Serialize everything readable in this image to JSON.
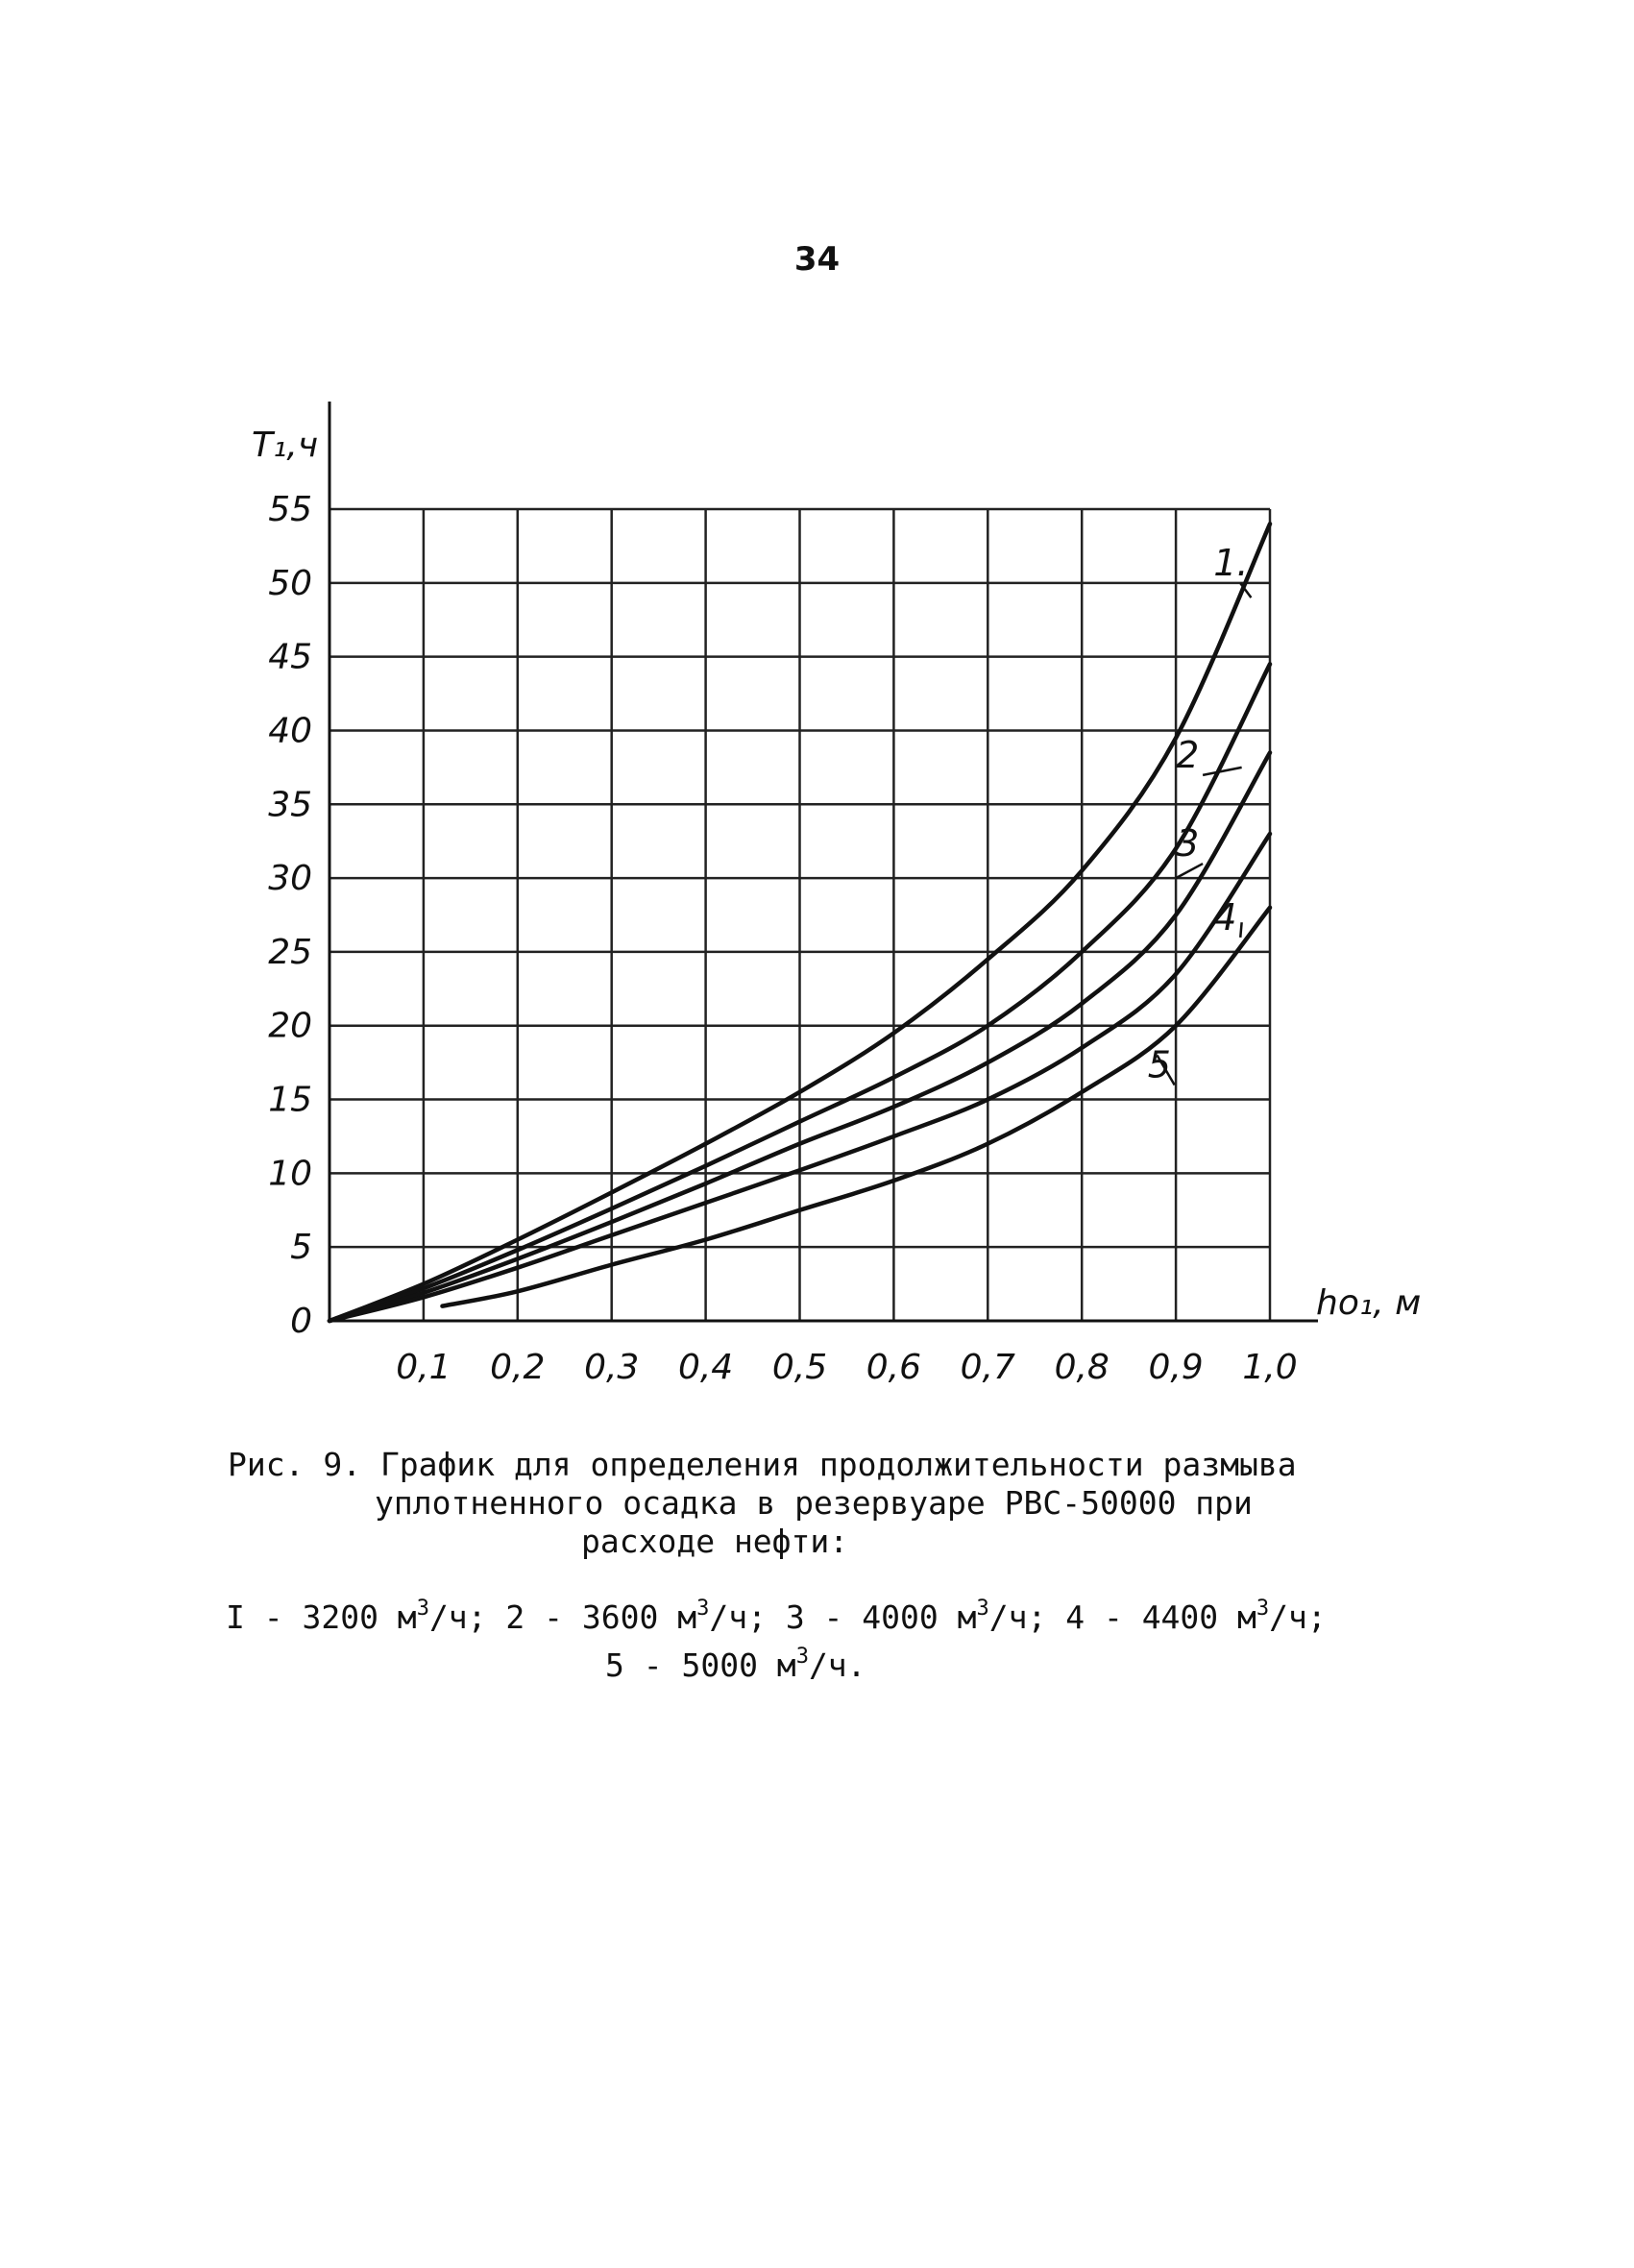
{
  "page_number": "34",
  "caption": {
    "line1": "Рис. 9. График для определения продолжительности размыва",
    "line2": "уплотненного осадка в резервуаре РВС-50000 при",
    "line3": "расходе нефти:",
    "item1": "I - 3200 м",
    "item2": "/ч; 2 - 3600 м",
    "item3": "/ч; 3 - 4000 м",
    "item4": "/ч; 4 - 4400 м",
    "item5": "/ч;",
    "item6": "5 - 5000 м",
    "item7": "/ч.",
    "sup": "3"
  },
  "chart_data": {
    "type": "line",
    "ylabel": "T₁,ч",
    "xlabel": "hо₁, м",
    "xlim": [
      0,
      1.0
    ],
    "ylim": [
      0,
      55
    ],
    "x_ticks": [
      0.1,
      0.2,
      0.3,
      0.4,
      0.5,
      0.6,
      0.7,
      0.8,
      0.9,
      1.0
    ],
    "x_tick_labels": [
      "0,1",
      "0,2",
      "0,3",
      "0,4",
      "0,5",
      "0,6",
      "0,7",
      "0,8",
      "0,9",
      "1,0"
    ],
    "y_ticks": [
      0,
      5,
      10,
      15,
      20,
      25,
      30,
      35,
      40,
      45,
      50,
      55
    ],
    "y_tick_labels": [
      "0",
      "5",
      "10",
      "15",
      "20",
      "25",
      "30",
      "35",
      "40",
      "45",
      "50",
      "55"
    ],
    "grid": true,
    "series": [
      {
        "name": "1",
        "x": [
          0,
          0.1,
          0.2,
          0.3,
          0.4,
          0.5,
          0.6,
          0.7,
          0.8,
          0.9,
          1.0
        ],
        "y": [
          0,
          2.5,
          5.5,
          8.7,
          12.0,
          15.5,
          19.5,
          24.5,
          30.5,
          39.5,
          54.0
        ]
      },
      {
        "name": "2",
        "x": [
          0,
          0.1,
          0.2,
          0.3,
          0.4,
          0.5,
          0.6,
          0.7,
          0.8,
          0.9,
          1.0
        ],
        "y": [
          0,
          2.2,
          4.8,
          7.6,
          10.5,
          13.5,
          16.5,
          20.0,
          25.0,
          32.0,
          44.5
        ]
      },
      {
        "name": "3",
        "x": [
          0,
          0.1,
          0.2,
          0.3,
          0.4,
          0.5,
          0.6,
          0.7,
          0.8,
          0.9,
          1.0
        ],
        "y": [
          0,
          1.9,
          4.2,
          6.7,
          9.3,
          12.0,
          14.5,
          17.5,
          21.5,
          27.5,
          38.5
        ]
      },
      {
        "name": "4",
        "x": [
          0,
          0.1,
          0.2,
          0.3,
          0.4,
          0.5,
          0.6,
          0.7,
          0.8,
          0.9,
          1.0
        ],
        "y": [
          0,
          1.6,
          3.6,
          5.8,
          8.0,
          10.2,
          12.5,
          15.0,
          18.5,
          23.5,
          33.0
        ]
      },
      {
        "name": "5",
        "x": [
          0.12,
          0.2,
          0.3,
          0.4,
          0.5,
          0.6,
          0.7,
          0.8,
          0.9,
          1.0
        ],
        "y": [
          1.0,
          2.0,
          3.8,
          5.5,
          7.5,
          9.5,
          12.0,
          15.5,
          20.0,
          28.0
        ]
      }
    ],
    "curve_labels": [
      "1.",
      "2",
      "3",
      "4",
      "5"
    ],
    "colors": {
      "line": "#111111",
      "grid": "#222222"
    }
  }
}
